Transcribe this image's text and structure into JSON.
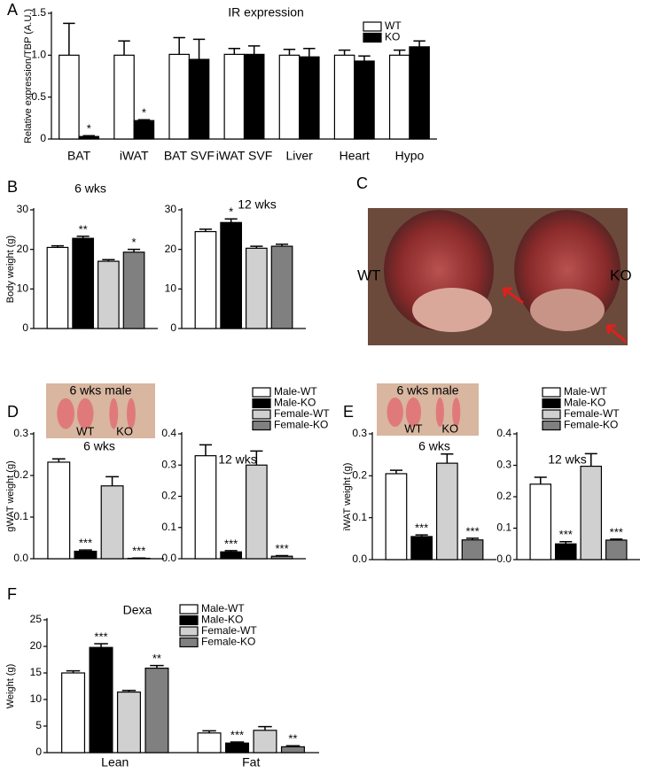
{
  "chart_data": [
    {
      "type": "bar",
      "panel": "A",
      "title": "IR expression",
      "ylabel": "Relative expression/TBP (A.U.)",
      "categories": [
        "BAT",
        "iWAT",
        "BAT SVF",
        "iWAT SVF",
        "Liver",
        "Heart",
        "Hypo"
      ],
      "ylim": [
        0,
        1.5
      ],
      "yticks": [
        0,
        0.5,
        {
          "value": 1,
          "label": "1.0"
        },
        1.5
      ],
      "series": [
        {
          "name": "WT",
          "color": "#ffffff",
          "values": [
            1.0,
            1.0,
            1.01,
            1.01,
            1.0,
            1.0,
            1.0
          ],
          "errors": [
            0.38,
            0.17,
            0.2,
            0.07,
            0.07,
            0.06,
            0.06
          ],
          "stars": [
            null,
            null,
            null,
            null,
            null,
            null,
            null
          ]
        },
        {
          "name": "KO",
          "color": "#000000",
          "values": [
            0.03,
            0.22,
            0.95,
            1.01,
            0.98,
            0.93,
            1.1
          ],
          "errors": [
            0.01,
            0.01,
            0.24,
            0.1,
            0.1,
            0.06,
            0.07
          ],
          "stars": [
            "*",
            "*",
            null,
            null,
            null,
            null,
            null
          ]
        }
      ]
    },
    {
      "type": "bar",
      "panel": "B",
      "title": "6 wks",
      "ylabel": "Body weight (g)",
      "categories": [
        null
      ],
      "ylim": [
        0,
        30
      ],
      "yticks": [
        0,
        10,
        20,
        30
      ],
      "series": [
        {
          "name": "Male-WT",
          "color": "#ffffff",
          "values": [
            20.5
          ],
          "errors": [
            0.4
          ],
          "stars": [
            null
          ]
        },
        {
          "name": "Male-KO",
          "color": "#000000",
          "values": [
            22.8
          ],
          "errors": [
            0.5
          ],
          "stars": [
            "**"
          ]
        },
        {
          "name": "Female-WT",
          "color": "#d0d0d0",
          "values": [
            17.0
          ],
          "errors": [
            0.4
          ],
          "stars": [
            null
          ]
        },
        {
          "name": "Female-KO",
          "color": "#808080",
          "values": [
            19.3
          ],
          "errors": [
            0.7
          ],
          "stars": [
            "*"
          ]
        }
      ]
    },
    {
      "type": "bar",
      "title": "12 wks",
      "categories": [
        null
      ],
      "ylim": [
        0,
        30
      ],
      "yticks": [
        0,
        10,
        20,
        30
      ],
      "series": [
        {
          "color": "#ffffff",
          "values": [
            24.5
          ],
          "errors": [
            0.6
          ],
          "stars": [
            null
          ]
        },
        {
          "color": "#000000",
          "values": [
            26.8
          ],
          "errors": [
            0.9
          ],
          "stars": [
            "*"
          ]
        },
        {
          "color": "#d0d0d0",
          "values": [
            20.3
          ],
          "errors": [
            0.5
          ],
          "stars": [
            null
          ]
        },
        {
          "color": "#808080",
          "values": [
            20.8
          ],
          "errors": [
            0.5
          ],
          "stars": [
            null
          ]
        }
      ]
    },
    {
      "type": "bar",
      "panel": "D",
      "title": "6 wks",
      "ylabel": "gWAT weight (g)",
      "categories": [
        null
      ],
      "ylim": [
        0,
        0.3
      ],
      "yticks": [
        {
          "value": 0,
          "label": "0.0"
        },
        0.1,
        0.2,
        0.3
      ],
      "series": [
        {
          "color": "#ffffff",
          "values": [
            0.232
          ],
          "errors": [
            0.008
          ],
          "stars": [
            null
          ]
        },
        {
          "color": "#000000",
          "values": [
            0.018
          ],
          "errors": [
            0.003
          ],
          "stars": [
            "***"
          ]
        },
        {
          "color": "#d0d0d0",
          "values": [
            0.175
          ],
          "errors": [
            0.022
          ],
          "stars": [
            null
          ]
        },
        {
          "color": "#808080",
          "values": [
            0.001
          ],
          "errors": [
            0.0005
          ],
          "stars": [
            "***"
          ]
        }
      ]
    },
    {
      "type": "bar",
      "title": "12 wks",
      "categories": [
        null
      ],
      "ylim": [
        0,
        0.4
      ],
      "yticks": [
        {
          "value": 0,
          "label": "0.0"
        },
        0.1,
        0.2,
        0.3,
        0.4
      ],
      "series": [
        {
          "name": "Male-WT",
          "color": "#ffffff",
          "values": [
            0.33
          ],
          "errors": [
            0.035
          ],
          "stars": [
            null
          ]
        },
        {
          "name": "Male-KO",
          "color": "#000000",
          "values": [
            0.022
          ],
          "errors": [
            0.004
          ],
          "stars": [
            "***"
          ]
        },
        {
          "name": "Female-WT",
          "color": "#d0d0d0",
          "values": [
            0.3
          ],
          "errors": [
            0.045
          ],
          "stars": [
            null
          ]
        },
        {
          "name": "Female-KO",
          "color": "#808080",
          "values": [
            0.008
          ],
          "errors": [
            0.002
          ],
          "stars": [
            "***"
          ]
        }
      ]
    },
    {
      "type": "bar",
      "panel": "E",
      "title": "6 wks",
      "ylabel": "iWAT weight (g)",
      "categories": [
        null
      ],
      "ylim": [
        0,
        0.3
      ],
      "yticks": [
        {
          "value": 0,
          "label": "0.0"
        },
        0.1,
        0.2,
        0.3
      ],
      "series": [
        {
          "color": "#ffffff",
          "values": [
            0.205
          ],
          "errors": [
            0.008
          ],
          "stars": [
            null
          ]
        },
        {
          "color": "#000000",
          "values": [
            0.055
          ],
          "errors": [
            0.004
          ],
          "stars": [
            "***"
          ]
        },
        {
          "color": "#d0d0d0",
          "values": [
            0.23
          ],
          "errors": [
            0.022
          ],
          "stars": [
            null
          ]
        },
        {
          "color": "#808080",
          "values": [
            0.047
          ],
          "errors": [
            0.004
          ],
          "stars": [
            "***"
          ]
        }
      ]
    },
    {
      "type": "bar",
      "title": "12 wks",
      "categories": [
        null
      ],
      "ylim": [
        0,
        0.4
      ],
      "yticks": [
        {
          "value": 0,
          "label": "0.0"
        },
        0.1,
        0.2,
        0.3,
        0.4
      ],
      "series": [
        {
          "name": "Male-WT",
          "color": "#ffffff",
          "values": [
            0.24
          ],
          "errors": [
            0.022
          ],
          "stars": [
            null
          ]
        },
        {
          "name": "Male-KO",
          "color": "#000000",
          "values": [
            0.05
          ],
          "errors": [
            0.007
          ],
          "stars": [
            "***"
          ]
        },
        {
          "name": "Female-WT",
          "color": "#d0d0d0",
          "values": [
            0.297
          ],
          "errors": [
            0.04
          ],
          "stars": [
            null
          ]
        },
        {
          "name": "Female-KO",
          "color": "#808080",
          "values": [
            0.062
          ],
          "errors": [
            0.003
          ],
          "stars": [
            "***"
          ]
        }
      ]
    },
    {
      "type": "bar",
      "panel": "F",
      "title": "Dexa",
      "ylabel": "Weight (g)",
      "categories": [
        "Lean",
        "Fat"
      ],
      "ylim": [
        0,
        25
      ],
      "yticks": [
        0,
        5,
        10,
        15,
        20,
        25
      ],
      "series": [
        {
          "name": "Male-WT",
          "color": "#ffffff",
          "values": [
            15.0,
            3.7
          ],
          "errors": [
            0.4,
            0.4
          ],
          "stars": [
            null,
            null
          ]
        },
        {
          "name": "Male-KO",
          "color": "#000000",
          "values": [
            19.8,
            1.8
          ],
          "errors": [
            0.7,
            0.2
          ],
          "stars": [
            "***",
            "***"
          ]
        },
        {
          "name": "Female-WT",
          "color": "#d0d0d0",
          "values": [
            11.4,
            4.2
          ],
          "errors": [
            0.3,
            0.7
          ],
          "stars": [
            null,
            null
          ]
        },
        {
          "name": "Female-KO",
          "color": "#808080",
          "values": [
            15.9,
            1.1
          ],
          "errors": [
            0.5,
            0.2
          ],
          "stars": [
            "**",
            "**"
          ]
        }
      ]
    }
  ],
  "images": [
    {
      "panel": "C",
      "labels": [
        "WT",
        "KO"
      ]
    },
    {
      "caption": "6 wks male",
      "labels": [
        "WT",
        "KO"
      ]
    },
    {
      "caption": "6 wks male",
      "labels": [
        "WT",
        "KO"
      ]
    }
  ]
}
